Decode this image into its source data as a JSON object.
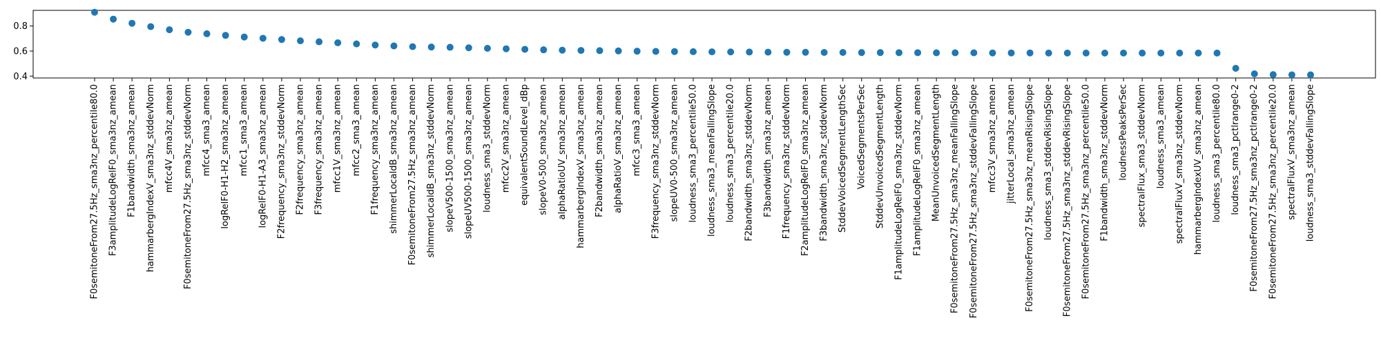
{
  "chart_data": {
    "type": "scatter",
    "title": "",
    "xlabel": "",
    "ylabel": "",
    "ylim": [
      0.385,
      0.925
    ],
    "yticks": [
      0.4,
      0.6,
      0.8
    ],
    "grid": false,
    "marker_color": "#1f77b4",
    "categories": [
      "F0semitoneFrom27.5Hz_sma3nz_percentile80.0",
      "F3amplitudeLogRelF0_sma3nz_amean",
      "F1bandwidth_sma3nz_amean",
      "hammarbergIndexV_sma3nz_stddevNorm",
      "mfcc4V_sma3nz_amean",
      "F0semitoneFrom27.5Hz_sma3nz_stddevNorm",
      "mfcc4_sma3_amean",
      "logRelF0-H1-H2_sma3nz_amean",
      "mfcc1_sma3_amean",
      "logRelF0-H1-A3_sma3nz_amean",
      "F2frequency_sma3nz_stddevNorm",
      "F2frequency_sma3nz_amean",
      "F3frequency_sma3nz_amean",
      "mfcc1V_sma3nz_amean",
      "mfcc2_sma3_amean",
      "F1frequency_sma3nz_amean",
      "shimmerLocaldB_sma3nz_amean",
      "F0semitoneFrom27.5Hz_sma3nz_amean",
      "shimmerLocaldB_sma3nz_stddevNorm",
      "slopeV500-1500_sma3nz_amean",
      "slopeUV500-1500_sma3nz_amean",
      "loudness_sma3_stddevNorm",
      "mfcc2V_sma3nz_amean",
      "equivalentSoundLevel_dBp",
      "slopeV0-500_sma3nz_amean",
      "alphaRatioUV_sma3nz_amean",
      "hammarbergIndexV_sma3nz_amean",
      "F2bandwidth_sma3nz_amean",
      "alphaRatioV_sma3nz_amean",
      "mfcc3_sma3_amean",
      "F3frequency_sma3nz_stddevNorm",
      "slopeUV0-500_sma3nz_amean",
      "loudness_sma3_percentile50.0",
      "loudness_sma3_meanFallingSlope",
      "loudness_sma3_percentile20.0",
      "F2bandwidth_sma3nz_stddevNorm",
      "F3bandwidth_sma3nz_amean",
      "F1frequency_sma3nz_stddevNorm",
      "F2amplitudeLogRelF0_sma3nz_amean",
      "F3bandwidth_sma3nz_stddevNorm",
      "StddevVoicedSegmentLengthSec",
      "VoicedSegmentsPerSec",
      "StddevUnvoicedSegmentLength",
      "F1amplitudeLogRelF0_sma3nz_stddevNorm",
      "F1amplitudeLogRelF0_sma3nz_amean",
      "MeanUnvoicedSegmentLength",
      "F0semitoneFrom27.5Hz_sma3nz_meanFallingSlope",
      "F0semitoneFrom27.5Hz_sma3nz_stddevFallingSlope",
      "mfcc3V_sma3nz_amean",
      "jitterLocal_sma3nz_amean",
      "F0semitoneFrom27.5Hz_sma3nz_meanRisingSlope",
      "loudness_sma3_stddevRisingSlope",
      "F0semitoneFrom27.5Hz_sma3nz_stddevRisingSlope",
      "F0semitoneFrom27.5Hz_sma3nz_percentile50.0",
      "F1bandwidth_sma3nz_stddevNorm",
      "loudnessPeaksPerSec",
      "spectralFlux_sma3_stddevNorm",
      "loudness_sma3_amean",
      "spectralFluxV_sma3nz_stddevNorm",
      "hammarbergIndexUV_sma3nz_amean",
      "loudness_sma3_percentile80.0",
      "loudness_sma3_pctlrange0-2",
      "F0semitoneFrom27.5Hz_sma3nz_pctlrange0-2",
      "F0semitoneFrom27.5Hz_sma3nz_percentile20.0",
      "spectralFluxV_sma3nz_amean",
      "loudness_sma3_stddevFallingSlope"
    ],
    "values": [
      0.91,
      0.855,
      0.822,
      0.795,
      0.77,
      0.75,
      0.738,
      0.725,
      0.712,
      0.702,
      0.692,
      0.682,
      0.674,
      0.666,
      0.657,
      0.648,
      0.641,
      0.635,
      0.632,
      0.63,
      0.626,
      0.622,
      0.618,
      0.614,
      0.61,
      0.607,
      0.605,
      0.603,
      0.601,
      0.599,
      0.597,
      0.596,
      0.595,
      0.594,
      0.593,
      0.592,
      0.591,
      0.59,
      0.59,
      0.589,
      0.589,
      0.588,
      0.588,
      0.587,
      0.587,
      0.586,
      0.586,
      0.586,
      0.585,
      0.585,
      0.585,
      0.584,
      0.584,
      0.584,
      0.584,
      0.584,
      0.584,
      0.584,
      0.584,
      0.584,
      0.584,
      0.462,
      0.418,
      0.412,
      0.41,
      0.41
    ]
  }
}
